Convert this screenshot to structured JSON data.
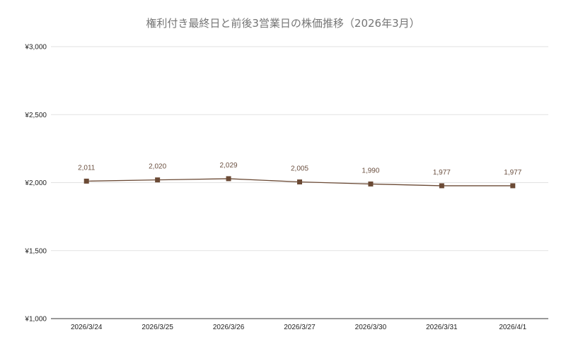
{
  "chart_data": {
    "type": "line",
    "title": "権利付き最終日と前後3営業日の株価推移（2026年3月）",
    "categories": [
      "2026/3/24",
      "2026/3/25",
      "2026/3/26",
      "2026/3/27",
      "2026/3/30",
      "2026/3/31",
      "2026/4/1"
    ],
    "series": [
      {
        "values": [
          2011,
          2020,
          2029,
          2005,
          1990,
          1977,
          1977
        ]
      }
    ],
    "data_labels": [
      "2,011",
      "2,020",
      "2,029",
      "2,005",
      "1,990",
      "1,977",
      "1,977"
    ],
    "y_ticks": [
      1000,
      1500,
      2000,
      2500,
      3000
    ],
    "y_tick_labels": [
      "¥1,000",
      "¥1,500",
      "¥2,000",
      "¥2,500",
      "¥3,000"
    ],
    "ylim": [
      1000,
      3000
    ],
    "grid": true,
    "legend": "none",
    "colors": {
      "line": "#6b4a35",
      "marker": "#6b4a35",
      "label": "#6b5040",
      "grid": "#e2e2e2"
    }
  }
}
